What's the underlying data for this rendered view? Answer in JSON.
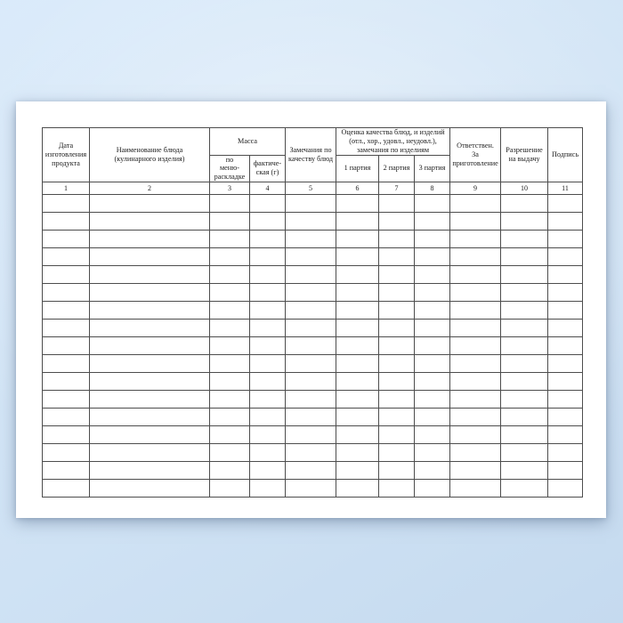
{
  "document": {
    "kind": "blank-table-form"
  },
  "colors": {
    "background_blue_light": "#d9eafa",
    "background_blue_dark": "#c5daef",
    "page": "#ffffff",
    "grid_line": "#4d4d4d",
    "text": "#1c1c1c"
  },
  "form_table": {
    "headers": {
      "date": "Дата\nизготовления\nпродукта",
      "dish_name": "Наименование блюда\n(кулинарного изделия)",
      "mass_group": "Масса",
      "mass_by_menu": "по\nменю-\nраскладке",
      "mass_actual": "фактиче-\nская (г)",
      "quality_remarks": "Замечания по\nкачеству блюд",
      "quality_group": "Оценка качества блюд, и изделий\n(отл., хор., удовл., неудовл.),\nзамечания по изделиям",
      "batch_1": "1 партия",
      "batch_2": "2 партия",
      "batch_3": "3 партия",
      "responsible": "Ответствен.\nЗа\nприготовление",
      "permission": "Разрешение\nна выдачу",
      "signature": "Подпись"
    },
    "column_numbers": [
      "1",
      "2",
      "3",
      "4",
      "5",
      "6",
      "7",
      "8",
      "9",
      "10",
      "11"
    ],
    "empty_row_count": 17
  }
}
